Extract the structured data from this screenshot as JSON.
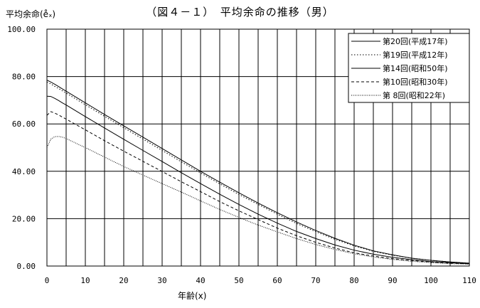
{
  "chart_data": {
    "type": "line",
    "title": "（図４－１）　平均余命の推移（男）",
    "ylabel": "平均余命(e̊ₓ)",
    "xlabel": "年齢(x)",
    "xlim": [
      0,
      110
    ],
    "ylim": [
      0,
      100
    ],
    "x_ticks": [
      "0",
      "10",
      "20",
      "30",
      "40",
      "50",
      "60",
      "70",
      "80",
      "90",
      "100",
      "110"
    ],
    "y_ticks": [
      "0.00",
      "20.00",
      "40.00",
      "60.00",
      "80.00",
      "100.00"
    ],
    "grid": true,
    "legend_position": "top-right",
    "x": [
      0,
      1,
      2,
      3,
      4,
      5,
      10,
      15,
      20,
      25,
      30,
      35,
      40,
      45,
      50,
      55,
      60,
      65,
      70,
      75,
      80,
      85,
      90,
      95,
      100,
      105,
      110
    ],
    "series": [
      {
        "name": "第20回(平成17年)",
        "style": "solid",
        "values": [
          78.5,
          77.7,
          76.8,
          75.8,
          74.8,
          73.8,
          68.9,
          64.0,
          59.2,
          54.4,
          49.6,
          44.8,
          40.0,
          35.4,
          30.9,
          26.6,
          22.5,
          18.6,
          15.0,
          11.7,
          8.8,
          6.4,
          4.7,
          3.3,
          2.4,
          1.7,
          1.2
        ]
      },
      {
        "name": "第19回(平成12年)",
        "style": "dotted",
        "values": [
          77.7,
          76.9,
          75.9,
          75.0,
          74.0,
          73.0,
          68.1,
          63.2,
          58.4,
          53.6,
          48.8,
          44.0,
          39.3,
          34.7,
          30.2,
          26.0,
          21.9,
          18.0,
          14.5,
          11.3,
          8.5,
          6.2,
          4.6,
          3.3,
          2.4,
          1.7,
          1.2
        ]
      },
      {
        "name": "第14回(昭和50年)",
        "style": "solid",
        "values": [
          71.7,
          71.6,
          70.8,
          69.9,
          68.9,
          68.0,
          63.1,
          58.3,
          53.5,
          48.8,
          44.1,
          39.4,
          34.8,
          30.3,
          26.0,
          21.9,
          18.1,
          14.6,
          11.6,
          8.9,
          6.7,
          5.0,
          3.7,
          2.7,
          1.9,
          1.4,
          1.0
        ]
      },
      {
        "name": "第10回(昭和30年)",
        "style": "dashed",
        "values": [
          63.6,
          65.2,
          64.6,
          63.8,
          62.9,
          62.0,
          57.5,
          52.9,
          48.5,
          44.2,
          39.9,
          35.6,
          31.4,
          27.2,
          23.3,
          19.6,
          16.0,
          12.8,
          10.0,
          7.6,
          5.6,
          4.2,
          3.1,
          2.3,
          1.7,
          1.2,
          0.9
        ]
      },
      {
        "name": "第 8回(昭和22年)",
        "style": "fine-dotted",
        "values": [
          50.1,
          53.5,
          54.6,
          54.7,
          54.4,
          53.8,
          50.0,
          46.0,
          42.0,
          38.4,
          34.8,
          31.2,
          27.5,
          23.9,
          20.5,
          17.3,
          14.4,
          11.6,
          9.1,
          7.0,
          5.2,
          3.8,
          2.8,
          2.0,
          1.4,
          1.0,
          0.8
        ]
      }
    ]
  }
}
